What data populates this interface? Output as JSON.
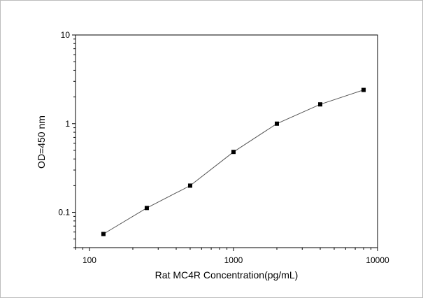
{
  "chart_data": {
    "type": "line",
    "title": "",
    "xlabel": "Rat MC4R Concentration(pg/mL)",
    "ylabel": "OD=450 nm",
    "xscale": "log",
    "yscale": "log",
    "xlim": [
      80,
      10000
    ],
    "ylim": [
      0.04,
      10
    ],
    "xticks": [
      100,
      1000,
      10000
    ],
    "xtick_labels": [
      "100",
      "1000",
      "10000"
    ],
    "yticks": [
      0.1,
      1,
      10
    ],
    "ytick_labels": [
      "0.1",
      "1",
      "10"
    ],
    "grid": false,
    "legend": "none",
    "series": [
      {
        "x": [
          125,
          250,
          500,
          1000,
          2000,
          4000,
          8000
        ],
        "y": [
          0.057,
          0.112,
          0.2,
          0.48,
          1.0,
          1.65,
          2.4
        ],
        "marker": "square",
        "color": "#000000",
        "line_color": "#555555"
      }
    ]
  }
}
